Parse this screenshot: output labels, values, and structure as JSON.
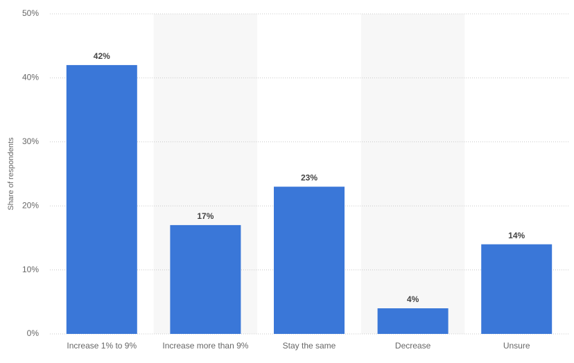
{
  "chart_data": {
    "type": "bar",
    "y_label": "Share of respondents",
    "categories": [
      "Increase 1% to 9%",
      "Increase more than 9%",
      "Stay the same",
      "Decrease",
      "Unsure"
    ],
    "values": [
      42,
      17,
      23,
      4,
      14
    ],
    "value_labels": [
      "42%",
      "17%",
      "23%",
      "4%",
      "14%"
    ],
    "color": "#3a77d8",
    "ylim": [
      0,
      50
    ],
    "yticks": [
      {
        "value": 0,
        "label": "0%"
      },
      {
        "value": 10,
        "label": "10%"
      },
      {
        "value": 20,
        "label": "20%"
      },
      {
        "value": 30,
        "label": "30%"
      },
      {
        "value": 40,
        "label": "40%"
      },
      {
        "value": 50,
        "label": "50%"
      }
    ],
    "grid": true
  }
}
